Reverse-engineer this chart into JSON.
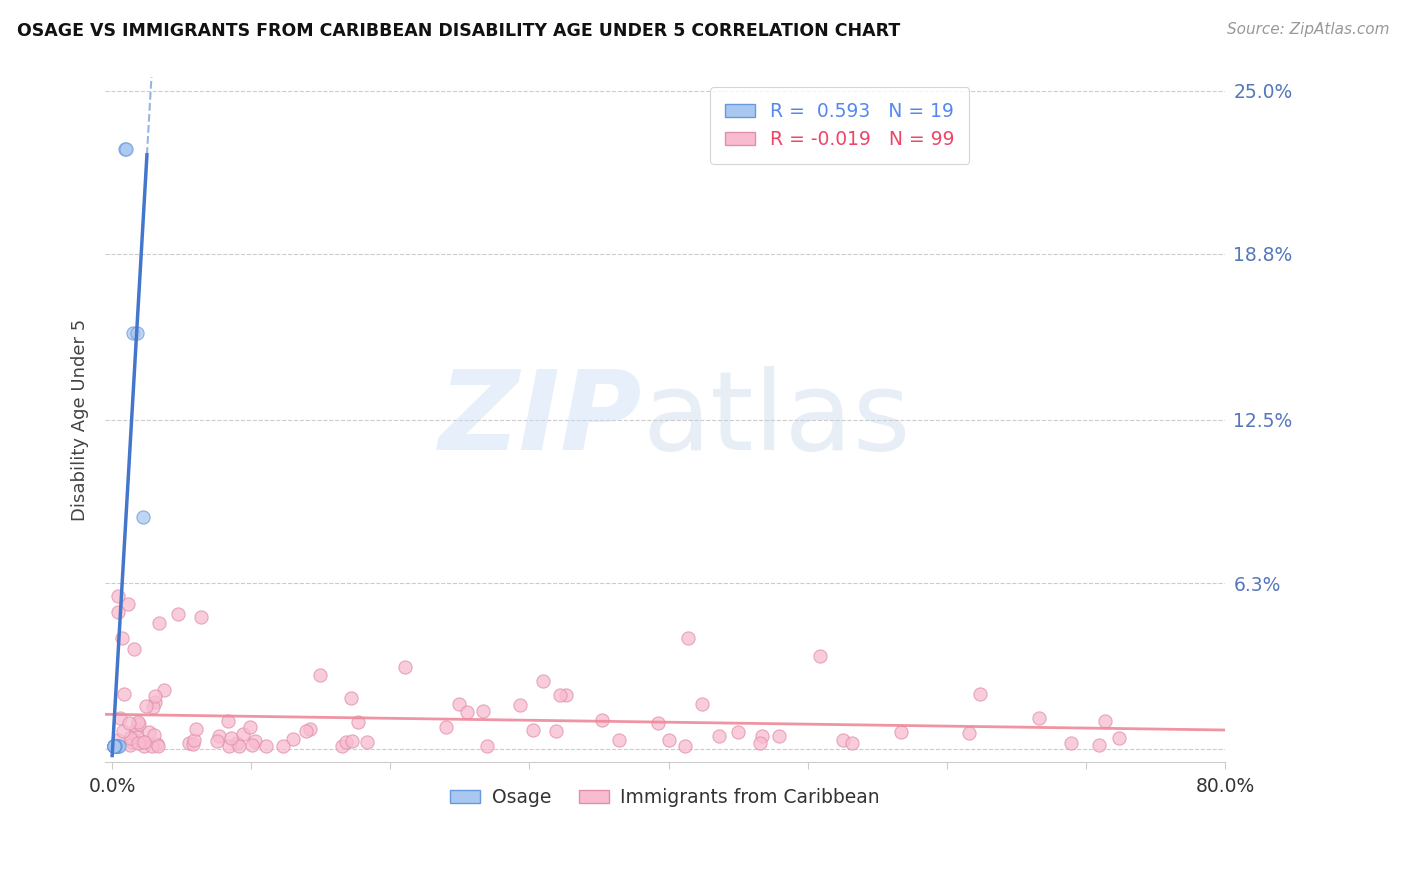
{
  "title": "OSAGE VS IMMIGRANTS FROM CARIBBEAN DISABILITY AGE UNDER 5 CORRELATION CHART",
  "source_text": "Source: ZipAtlas.com",
  "ylabel": "Disability Age Under 5",
  "xlim": [
    -0.005,
    0.8
  ],
  "ylim": [
    -0.005,
    0.255
  ],
  "ytick_vals": [
    0.0,
    0.063,
    0.125,
    0.188,
    0.25
  ],
  "ytick_labels": [
    "",
    "6.3%",
    "12.5%",
    "18.8%",
    "25.0%"
  ],
  "xtick_vals": [
    0.0,
    0.1,
    0.2,
    0.3,
    0.4,
    0.5,
    0.6,
    0.7,
    0.8
  ],
  "xtick_labels": [
    "0.0%",
    "",
    "",
    "",
    "",
    "",
    "",
    "",
    "80.0%"
  ],
  "blue_color": "#A8C8F0",
  "blue_edge_color": "#6699DD",
  "pink_color": "#F8BBD0",
  "pink_edge_color": "#E090A8",
  "blue_line_color": "#4477CC",
  "pink_line_color": "#EE8899",
  "legend_label1": "R =  0.593   N = 19",
  "legend_label2": "R = -0.019   N = 99",
  "legend_color1": "#5588EE",
  "legend_color2": "#EE4466",
  "bottom_label1": "Osage",
  "bottom_label2": "Immigrants from Caribbean",
  "watermark_zip": "ZIP",
  "watermark_atlas": "atlas",
  "osage_x": [
    0.001,
    0.009,
    0.01,
    0.015,
    0.018,
    0.022,
    0.003,
    0.003,
    0.004,
    0.005,
    0.001,
    0.001,
    0.002,
    0.002,
    0.001,
    0.001,
    0.001,
    0.001,
    0.001
  ],
  "osage_y": [
    0.001,
    0.228,
    0.228,
    0.158,
    0.158,
    0.088,
    0.001,
    0.001,
    0.001,
    0.001,
    0.001,
    0.001,
    0.001,
    0.001,
    0.001,
    0.001,
    0.001,
    0.001,
    0.001
  ]
}
